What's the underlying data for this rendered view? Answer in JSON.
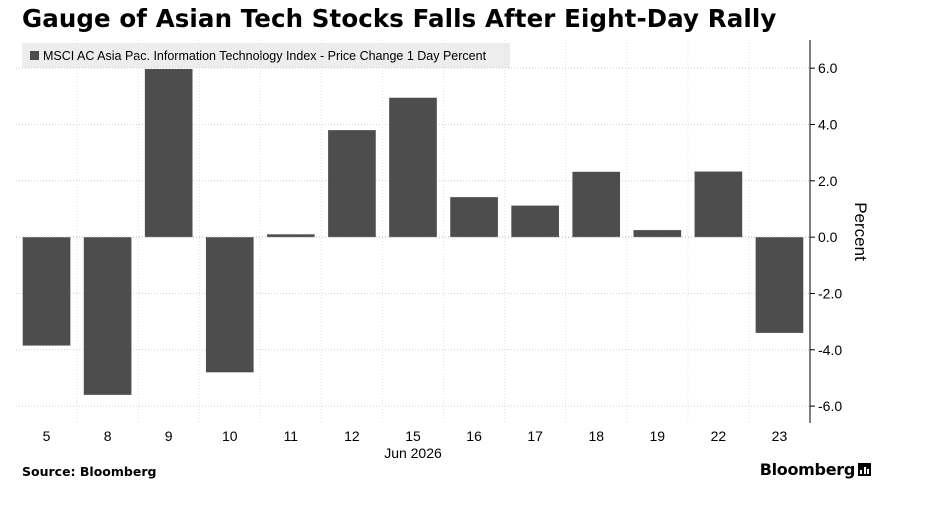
{
  "title": "Gauge of Asian Tech Stocks Falls After Eight-Day Rally",
  "source": "Source: Bloomberg",
  "brand": "Bloomberg",
  "colors": {
    "bar": "#4d4d4d",
    "grid": "#d0d0d0",
    "axis": "#000000",
    "legend_bg": "#ededed"
  },
  "chart_data": {
    "type": "bar",
    "title": "Gauge of Asian Tech Stocks Falls After Eight-Day Rally",
    "categories": [
      "5",
      "8",
      "9",
      "10",
      "11",
      "12",
      "15",
      "16",
      "17",
      "18",
      "19",
      "22",
      "23"
    ],
    "x_sublabel": "Jun 2026",
    "series": [
      {
        "name": "MSCI AC Asia Pac. Information Technology Index - Price Change 1 Day Percent",
        "values": [
          -3.85,
          -5.6,
          5.97,
          -4.8,
          0.1,
          3.8,
          4.95,
          1.42,
          1.12,
          2.32,
          0.25,
          2.33,
          -3.4
        ]
      }
    ],
    "ylabel": "Percent",
    "ylim": [
      -6.6,
      7.0
    ],
    "yticks": [
      6.0,
      4.0,
      2.0,
      0.0,
      -2.0,
      -4.0,
      -6.0
    ],
    "ytick_labels": [
      "6.0",
      "4.0",
      "2.0",
      "0.0",
      "-2.0",
      "-4.0",
      "-6.0"
    ],
    "y_axis_side": "right",
    "grid": true,
    "legend_position": "top-left"
  }
}
